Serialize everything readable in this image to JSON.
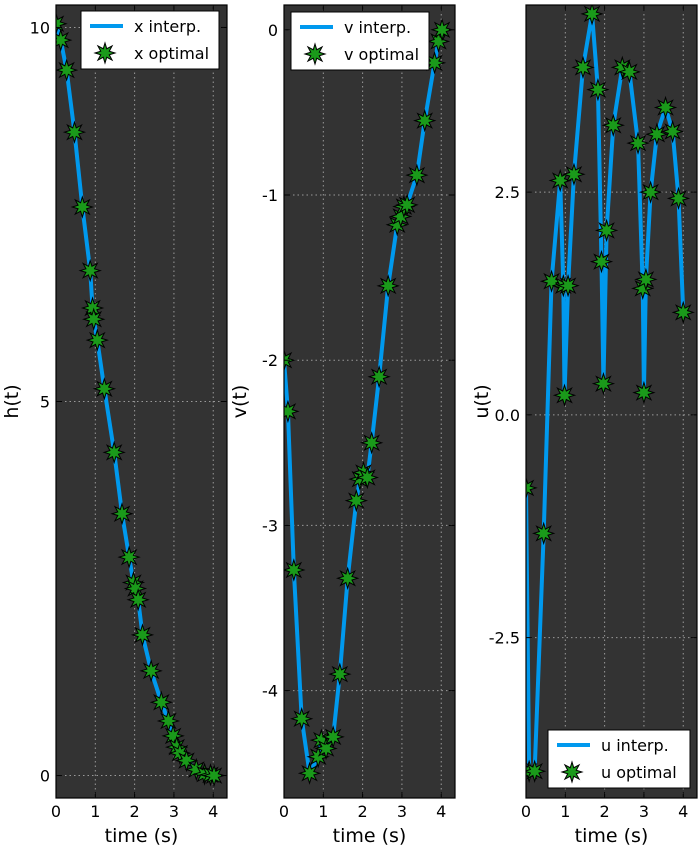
{
  "colors": {
    "axes_bg": "#333333",
    "line": "#0099ee",
    "marker_fill": "#1a9a1a",
    "marker_edge": "#000000",
    "grid": "#9a9a9a",
    "legend_bg": "#ffffff"
  },
  "chart_data": [
    {
      "type": "line",
      "xlabel": "time (s)",
      "ylabel": "h(t)",
      "xlim": [
        0,
        4.35
      ],
      "ylim": [
        -0.3,
        10.3
      ],
      "xticks": [
        0,
        1,
        2,
        3,
        4
      ],
      "xtick_labels": [
        "0",
        "1",
        "2",
        "3",
        "4"
      ],
      "yticks": [
        0,
        5,
        10
      ],
      "ytick_labels": [
        "0",
        "5",
        "10"
      ],
      "grid": true,
      "legend": {
        "placement": "top-right",
        "entries": [
          {
            "label": "x interp.",
            "kind": "line"
          },
          {
            "label": "x optimal",
            "kind": "marker"
          }
        ]
      },
      "series": [
        {
          "name": "x interp.",
          "marker": "star",
          "x": [
            0.0,
            0.12,
            0.27,
            0.47,
            0.67,
            0.87,
            0.93,
            0.96,
            1.05,
            1.23,
            1.48,
            1.68,
            1.86,
            1.97,
            2.02,
            2.09,
            2.2,
            2.42,
            2.68,
            2.86,
            2.98,
            3.07,
            3.15,
            3.32,
            3.57,
            3.78,
            3.93,
            4.02
          ],
          "y": [
            10.05,
            9.83,
            9.43,
            8.6,
            7.6,
            6.75,
            6.25,
            6.1,
            5.82,
            5.17,
            4.32,
            3.5,
            2.92,
            2.58,
            2.5,
            2.35,
            1.88,
            1.4,
            0.98,
            0.73,
            0.53,
            0.38,
            0.3,
            0.2,
            0.08,
            0.02,
            0.01,
            0.0
          ]
        }
      ]
    },
    {
      "type": "line",
      "xlabel": "time (s)",
      "ylabel": "v(t)",
      "xlim": [
        0,
        4.35
      ],
      "ylim": [
        -4.65,
        0.15
      ],
      "xticks": [
        0,
        1,
        2,
        3,
        4
      ],
      "xtick_labels": [
        "0",
        "1",
        "2",
        "3",
        "4"
      ],
      "yticks": [
        0,
        -1,
        -2,
        -3,
        -4
      ],
      "ytick_labels": [
        "0",
        "-1",
        "-2",
        "-3",
        "-4"
      ],
      "grid": true,
      "legend": {
        "placement": "top-left",
        "entries": [
          {
            "label": "v interp.",
            "kind": "line"
          },
          {
            "label": "v optimal",
            "kind": "marker"
          }
        ]
      },
      "series": [
        {
          "name": "v interp.",
          "marker": "star",
          "x": [
            0.0,
            0.1,
            0.25,
            0.45,
            0.65,
            0.87,
            0.95,
            1.07,
            1.25,
            1.42,
            1.62,
            1.84,
            1.93,
            2.02,
            2.12,
            2.23,
            2.42,
            2.65,
            2.88,
            2.97,
            3.05,
            3.13,
            3.38,
            3.58,
            3.83,
            3.93,
            4.02
          ],
          "y": [
            -2.0,
            -2.31,
            -3.27,
            -4.17,
            -4.5,
            -4.4,
            -4.3,
            -4.35,
            -4.28,
            -3.9,
            -3.32,
            -2.85,
            -2.72,
            -2.68,
            -2.71,
            -2.5,
            -2.1,
            -1.55,
            -1.18,
            -1.13,
            -1.07,
            -1.06,
            -0.88,
            -0.55,
            -0.2,
            -0.07,
            0.0
          ]
        }
      ]
    },
    {
      "type": "line",
      "xlabel": "time (s)",
      "ylabel": "u(t)",
      "xlim": [
        0,
        4.35
      ],
      "ylim": [
        -4.3,
        4.6
      ],
      "xticks": [
        0,
        1,
        2,
        3,
        4
      ],
      "xtick_labels": [
        "0",
        "1",
        "2",
        "3",
        "4"
      ],
      "yticks": [
        2.5,
        0.0,
        -2.5
      ],
      "ytick_labels": [
        "2.5",
        "0.0",
        "-2.5"
      ],
      "grid": true,
      "legend": {
        "placement": "bottom-right",
        "entries": [
          {
            "label": "u interp.",
            "kind": "line"
          },
          {
            "label": "u optimal",
            "kind": "marker"
          }
        ]
      },
      "series": [
        {
          "name": "u interp.",
          "marker": "star",
          "x": [
            0.0,
            0.08,
            0.22,
            0.45,
            0.65,
            0.87,
            0.95,
            0.98,
            1.07,
            1.22,
            1.45,
            1.68,
            1.83,
            1.92,
            1.97,
            2.05,
            2.22,
            2.45,
            2.63,
            2.85,
            2.97,
            3.0,
            3.05,
            3.17,
            3.33,
            3.55,
            3.73,
            3.88,
            4.0
          ],
          "y": [
            -0.82,
            -4.0,
            -4.0,
            -1.33,
            1.5,
            2.63,
            1.45,
            0.22,
            1.45,
            2.7,
            3.9,
            4.5,
            3.65,
            1.72,
            0.35,
            2.07,
            3.25,
            3.9,
            3.85,
            3.05,
            1.42,
            0.25,
            1.52,
            2.5,
            3.15,
            3.45,
            3.18,
            2.43,
            1.15
          ]
        }
      ]
    }
  ]
}
